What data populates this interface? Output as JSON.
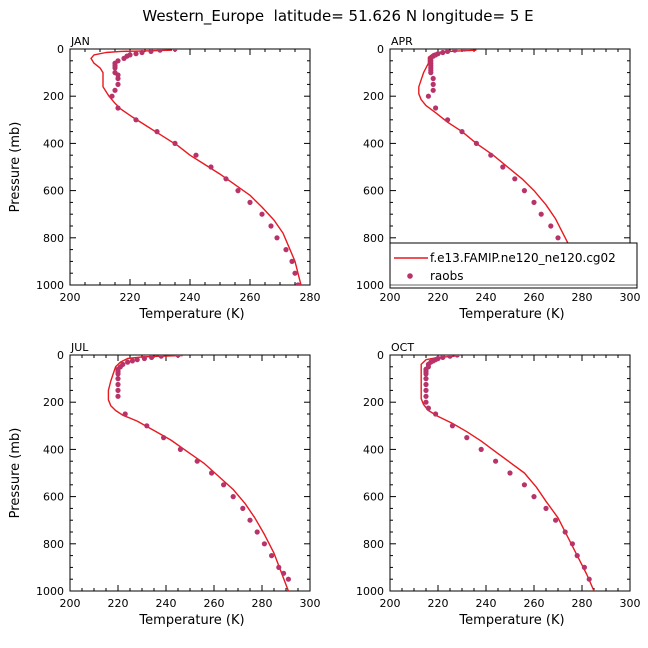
{
  "figure": {
    "title": "Western_Europe  latitude= 51.626 N longitude= 5 E"
  },
  "colors": {
    "model_line": "#e8191f",
    "raobs_marker": "#b8336a",
    "axis": "#000000"
  },
  "legend": {
    "placement": "inside APR panel, lower",
    "entries": [
      {
        "label": "f.e13.FAMIP.ne120_ne120.cg02",
        "style": "line",
        "color": "#e8191f"
      },
      {
        "label": "raobs",
        "style": "marker",
        "color": "#b8336a"
      }
    ]
  },
  "chart_data": [
    {
      "type": "line",
      "panel_label": "JAN",
      "xlabel": "Temperature (K)",
      "ylabel": "Pressure (mb)",
      "xlim": [
        200,
        280
      ],
      "xticks": [
        200,
        220,
        240,
        260,
        280
      ],
      "ylim": [
        0,
        1000
      ],
      "y_inverted": true,
      "yticks": [
        0,
        200,
        400,
        600,
        800,
        1000
      ],
      "series": [
        {
          "kind": "line",
          "x": [
            234,
            225,
            217,
            212,
            208,
            207,
            208,
            210,
            211,
            211,
            211,
            212,
            213,
            215,
            217,
            221,
            226,
            231,
            236,
            240,
            245,
            250,
            255,
            260,
            264,
            268,
            271,
            273,
            275,
            277
          ],
          "y": [
            5,
            8,
            10,
            15,
            25,
            40,
            60,
            80,
            100,
            130,
            160,
            180,
            200,
            230,
            255,
            290,
            330,
            370,
            410,
            450,
            490,
            530,
            575,
            620,
            670,
            725,
            780,
            840,
            900,
            1000
          ]
        },
        {
          "kind": "scatter",
          "x": [
            235,
            230,
            227,
            224,
            222,
            220,
            219,
            218,
            216,
            215,
            215,
            215,
            215,
            216,
            216,
            216,
            215,
            214,
            216,
            222,
            229,
            235,
            242,
            247,
            252,
            256,
            260,
            264,
            267,
            269,
            272,
            274,
            275,
            276
          ],
          "y": [
            0,
            5,
            10,
            15,
            20,
            25,
            30,
            40,
            50,
            60,
            70,
            80,
            100,
            110,
            125,
            150,
            175,
            200,
            250,
            300,
            350,
            400,
            450,
            500,
            550,
            600,
            650,
            700,
            750,
            800,
            850,
            900,
            950,
            1000
          ]
        }
      ]
    },
    {
      "type": "line",
      "panel_label": "APR",
      "xlabel": "Temperature (K)",
      "ylabel": "",
      "xlim": [
        200,
        300
      ],
      "xticks": [
        200,
        220,
        240,
        260,
        280,
        300
      ],
      "ylim": [
        0,
        1000
      ],
      "y_inverted": true,
      "yticks": [
        0,
        200,
        400,
        600,
        800,
        1000
      ],
      "series": [
        {
          "kind": "line",
          "x": [
            236,
            229,
            222,
            218,
            216,
            216,
            215,
            214,
            213,
            212,
            212,
            213,
            215,
            219,
            224,
            230,
            236,
            243,
            249,
            255,
            260,
            265,
            269,
            273,
            277,
            281
          ],
          "y": [
            5,
            8,
            12,
            20,
            35,
            60,
            80,
            100,
            130,
            160,
            190,
            215,
            240,
            270,
            310,
            350,
            400,
            450,
            500,
            550,
            600,
            660,
            720,
            800,
            880,
            1000
          ]
        },
        {
          "kind": "scatter",
          "x": [
            231,
            227,
            224,
            222,
            220,
            219,
            218,
            217,
            217,
            217,
            217,
            217,
            217,
            217,
            218,
            218,
            218,
            216,
            219,
            224,
            230,
            236,
            242,
            247,
            252,
            256,
            260,
            263,
            267,
            270,
            272,
            274,
            276,
            278,
            280
          ],
          "y": [
            0,
            5,
            10,
            15,
            20,
            25,
            30,
            40,
            50,
            60,
            70,
            80,
            90,
            100,
            125,
            150,
            175,
            200,
            250,
            300,
            350,
            400,
            450,
            500,
            550,
            600,
            650,
            700,
            750,
            800,
            850,
            900,
            925,
            950,
            1000
          ]
        }
      ]
    },
    {
      "type": "line",
      "panel_label": "JUL",
      "xlabel": "Temperature (K)",
      "ylabel": "Pressure (mb)",
      "xlim": [
        200,
        300
      ],
      "xticks": [
        200,
        220,
        240,
        260,
        280,
        300
      ],
      "ylim": [
        0,
        1000
      ],
      "y_inverted": true,
      "yticks": [
        0,
        200,
        400,
        600,
        800,
        1000
      ],
      "series": [
        {
          "kind": "line",
          "x": [
            247,
            238,
            230,
            224,
            221,
            219,
            218,
            217,
            216,
            216,
            217,
            219,
            222,
            228,
            235,
            242,
            249,
            256,
            262,
            268,
            273,
            277,
            281,
            285,
            288,
            291
          ],
          "y": [
            2,
            5,
            8,
            15,
            30,
            50,
            80,
            110,
            150,
            190,
            215,
            235,
            255,
            280,
            320,
            360,
            410,
            460,
            515,
            570,
            630,
            690,
            760,
            840,
            920,
            1000
          ]
        },
        {
          "kind": "scatter",
          "x": [
            245,
            238,
            234,
            231,
            228,
            226,
            224,
            222,
            221,
            220,
            220,
            220,
            220,
            220,
            220,
            220,
            223,
            232,
            239,
            246,
            253,
            259,
            264,
            268,
            272,
            275,
            278,
            281,
            284,
            287,
            289,
            291
          ],
          "y": [
            0,
            5,
            10,
            15,
            20,
            25,
            30,
            40,
            50,
            60,
            70,
            80,
            100,
            125,
            150,
            175,
            250,
            300,
            350,
            400,
            450,
            500,
            550,
            600,
            650,
            700,
            750,
            800,
            850,
            900,
            925,
            950
          ]
        }
      ]
    },
    {
      "type": "line",
      "panel_label": "OCT",
      "xlabel": "Temperature (K)",
      "ylabel": "",
      "xlim": [
        200,
        300
      ],
      "xticks": [
        200,
        220,
        240,
        260,
        280,
        300
      ],
      "ylim": [
        0,
        1000
      ],
      "y_inverted": true,
      "yticks": [
        0,
        200,
        400,
        600,
        800,
        1000
      ],
      "series": [
        {
          "kind": "line",
          "x": [
            227,
            220,
            215,
            213,
            213,
            213,
            213,
            213,
            213,
            214,
            216,
            220,
            226,
            232,
            238,
            244,
            250,
            256,
            261,
            265,
            270,
            274,
            278,
            282,
            285
          ],
          "y": [
            5,
            10,
            20,
            40,
            70,
            100,
            130,
            160,
            185,
            210,
            235,
            260,
            290,
            325,
            365,
            410,
            455,
            500,
            560,
            620,
            690,
            770,
            850,
            930,
            1000
          ]
        },
        {
          "kind": "scatter",
          "x": [
            228,
            225,
            222,
            220,
            219,
            218,
            217,
            216,
            216,
            215,
            215,
            215,
            215,
            215,
            215,
            215,
            215,
            216,
            219,
            226,
            232,
            238,
            244,
            250,
            256,
            260,
            265,
            269,
            273,
            276,
            278,
            281,
            283
          ],
          "y": [
            0,
            5,
            10,
            15,
            20,
            25,
            30,
            40,
            50,
            60,
            70,
            80,
            100,
            125,
            150,
            175,
            200,
            225,
            250,
            300,
            350,
            400,
            450,
            500,
            550,
            600,
            650,
            700,
            750,
            800,
            850,
            900,
            950
          ]
        }
      ]
    }
  ]
}
